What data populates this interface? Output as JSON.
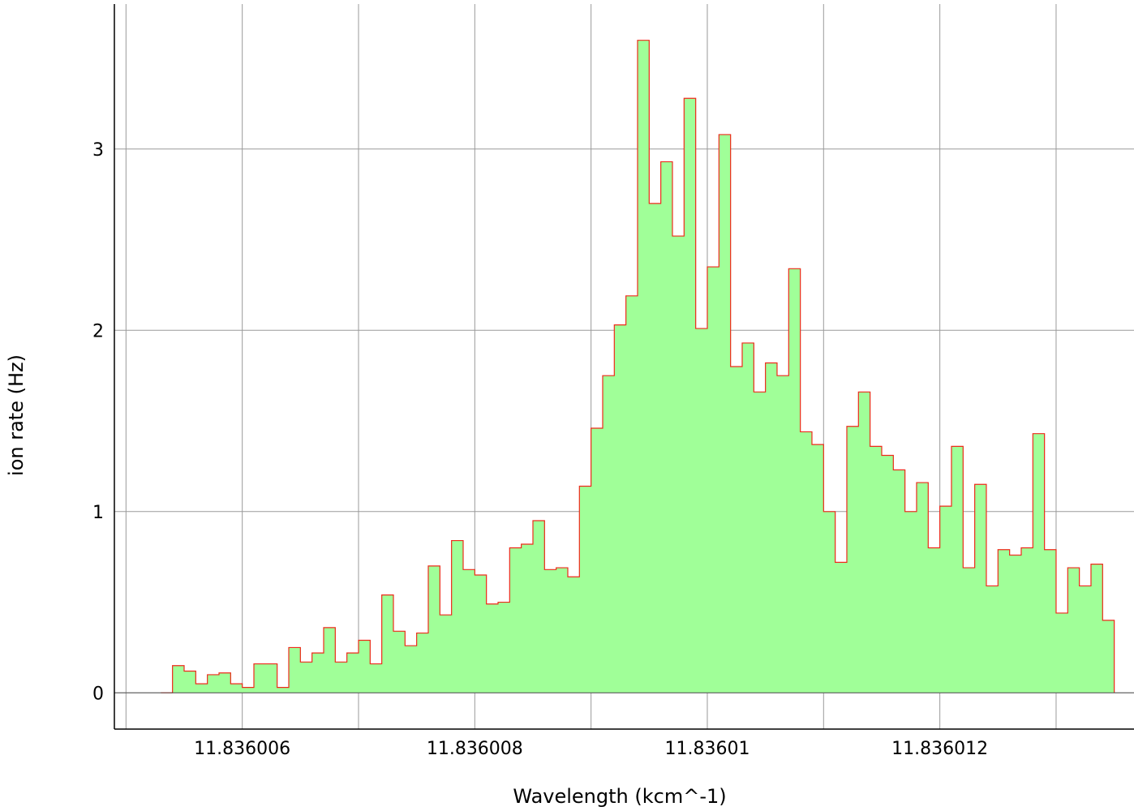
{
  "chart_data": {
    "type": "histogram-step",
    "xlabel": "Wavelength (kcm^-1)",
    "ylabel": "ion rate (Hz)",
    "xlim": [
      11.8360049,
      11.83601367
    ],
    "ylim": [
      -0.2,
      3.8
    ],
    "xticks": [
      {
        "value": 11.836006,
        "label": "11.836006"
      },
      {
        "value": 11.836008,
        "label": "11.836008"
      },
      {
        "value": 11.83601,
        "label": "11.83601"
      },
      {
        "value": 11.836012,
        "label": "11.836012"
      }
    ],
    "yticks": [
      {
        "value": 0,
        "label": "0"
      },
      {
        "value": 1,
        "label": "1"
      },
      {
        "value": 2,
        "label": "2"
      },
      {
        "value": 3,
        "label": "3"
      }
    ],
    "x_start": 11.8360053,
    "bin_width": 1e-07,
    "values": [
      0.0,
      0.15,
      0.12,
      0.05,
      0.1,
      0.11,
      0.05,
      0.03,
      0.16,
      0.16,
      0.03,
      0.25,
      0.17,
      0.22,
      0.36,
      0.17,
      0.22,
      0.29,
      0.16,
      0.54,
      0.34,
      0.26,
      0.33,
      0.7,
      0.43,
      0.84,
      0.68,
      0.65,
      0.49,
      0.5,
      0.8,
      0.82,
      0.95,
      0.68,
      0.69,
      0.64,
      1.14,
      1.46,
      1.75,
      2.03,
      2.19,
      3.6,
      2.7,
      2.93,
      2.52,
      3.28,
      2.01,
      2.35,
      3.08,
      1.8,
      1.93,
      1.66,
      1.82,
      1.75,
      2.34,
      1.44,
      1.37,
      1.0,
      0.72,
      1.47,
      1.66,
      1.36,
      1.31,
      1.23,
      1.0,
      1.16,
      0.8,
      1.03,
      1.36,
      0.69,
      1.15,
      0.59,
      0.79,
      0.76,
      0.8,
      1.43,
      0.79,
      0.44,
      0.69,
      0.59,
      0.71,
      0.4
    ],
    "grid": true,
    "colors": {
      "fill": "#a0ff98",
      "outline": "#ee2a1a",
      "grid": "#9a9a9a",
      "axis": "#000000"
    }
  }
}
